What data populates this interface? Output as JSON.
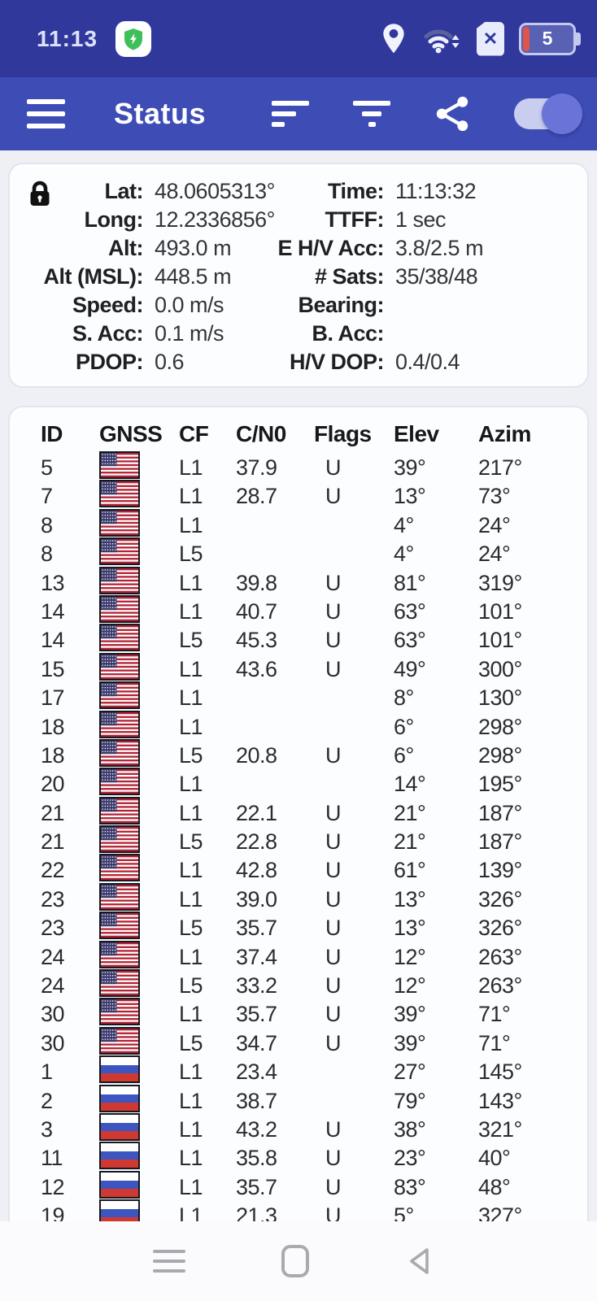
{
  "colors": {
    "statusbar_bg": "#30399b",
    "appbar_bg": "#3e4cb5",
    "page_bg": "#eef0f6",
    "card_bg": "#fcfdff",
    "card_border": "#e3e5ec",
    "text": "#2a2c30",
    "toggle_track": "#c9cdf0",
    "toggle_knob": "#6974d8",
    "battery_low_red": "#e0544a",
    "shield_green": "#3fbf57",
    "flag_us_blue": "#3c3b6e",
    "flag_us_red": "#b22234",
    "flag_ru_blue": "#3c55c0",
    "flag_ru_red": "#cf3931",
    "nav_icon_gray": "#a9aab0"
  },
  "status_bar": {
    "time": "11:13",
    "battery_level": "5",
    "icons": [
      "shield-icon",
      "location-pin-icon",
      "wifi-icon",
      "sim-no-signal-icon",
      "battery-icon"
    ]
  },
  "app_bar": {
    "title": "Status",
    "icons": [
      "menu-icon",
      "sort-icon",
      "filter-icon",
      "share-icon",
      "gnss-toggle"
    ],
    "toggle_on": true
  },
  "location_panel": {
    "lock_icon": "lock-icon",
    "rows": [
      {
        "left_label": "Lat:",
        "left_value": "48.0605313°",
        "right_label": "Time:",
        "right_value": "11:13:32"
      },
      {
        "left_label": "Long:",
        "left_value": "12.2336856°",
        "right_label": "TTFF:",
        "right_value": "1 sec"
      },
      {
        "left_label": "Alt:",
        "left_value": "493.0 m",
        "right_label": "E H/V Acc:",
        "right_value": "3.8/2.5 m"
      },
      {
        "left_label": "Alt (MSL):",
        "left_value": "448.5 m",
        "right_label": "# Sats:",
        "right_value": "35/38/48"
      },
      {
        "left_label": "Speed:",
        "left_value": "0.0 m/s",
        "right_label": "Bearing:",
        "right_value": ""
      },
      {
        "left_label": "S. Acc:",
        "left_value": "0.1 m/s",
        "right_label": "B. Acc:",
        "right_value": ""
      },
      {
        "left_label": "PDOP:",
        "left_value": "0.6",
        "right_label": "H/V DOP:",
        "right_value": "0.4/0.4"
      }
    ]
  },
  "sat_table": {
    "headers": [
      "ID",
      "GNSS",
      "CF",
      "C/N0",
      "Flags",
      "Elev",
      "Azim"
    ],
    "rows": [
      {
        "id": "5",
        "gnss": "us",
        "cf": "L1",
        "cn0": "37.9",
        "flags": "U",
        "elev": "39°",
        "azim": "217°"
      },
      {
        "id": "7",
        "gnss": "us",
        "cf": "L1",
        "cn0": "28.7",
        "flags": "U",
        "elev": "13°",
        "azim": "73°"
      },
      {
        "id": "8",
        "gnss": "us",
        "cf": "L1",
        "cn0": "",
        "flags": "",
        "elev": "4°",
        "azim": "24°"
      },
      {
        "id": "8",
        "gnss": "us",
        "cf": "L5",
        "cn0": "",
        "flags": "",
        "elev": "4°",
        "azim": "24°"
      },
      {
        "id": "13",
        "gnss": "us",
        "cf": "L1",
        "cn0": "39.8",
        "flags": "U",
        "elev": "81°",
        "azim": "319°"
      },
      {
        "id": "14",
        "gnss": "us",
        "cf": "L1",
        "cn0": "40.7",
        "flags": "U",
        "elev": "63°",
        "azim": "101°"
      },
      {
        "id": "14",
        "gnss": "us",
        "cf": "L5",
        "cn0": "45.3",
        "flags": "U",
        "elev": "63°",
        "azim": "101°"
      },
      {
        "id": "15",
        "gnss": "us",
        "cf": "L1",
        "cn0": "43.6",
        "flags": "U",
        "elev": "49°",
        "azim": "300°"
      },
      {
        "id": "17",
        "gnss": "us",
        "cf": "L1",
        "cn0": "",
        "flags": "",
        "elev": "8°",
        "azim": "130°"
      },
      {
        "id": "18",
        "gnss": "us",
        "cf": "L1",
        "cn0": "",
        "flags": "",
        "elev": "6°",
        "azim": "298°"
      },
      {
        "id": "18",
        "gnss": "us",
        "cf": "L5",
        "cn0": "20.8",
        "flags": "U",
        "elev": "6°",
        "azim": "298°"
      },
      {
        "id": "20",
        "gnss": "us",
        "cf": "L1",
        "cn0": "",
        "flags": "",
        "elev": "14°",
        "azim": "195°"
      },
      {
        "id": "21",
        "gnss": "us",
        "cf": "L1",
        "cn0": "22.1",
        "flags": "U",
        "elev": "21°",
        "azim": "187°"
      },
      {
        "id": "21",
        "gnss": "us",
        "cf": "L5",
        "cn0": "22.8",
        "flags": "U",
        "elev": "21°",
        "azim": "187°"
      },
      {
        "id": "22",
        "gnss": "us",
        "cf": "L1",
        "cn0": "42.8",
        "flags": "U",
        "elev": "61°",
        "azim": "139°"
      },
      {
        "id": "23",
        "gnss": "us",
        "cf": "L1",
        "cn0": "39.0",
        "flags": "U",
        "elev": "13°",
        "azim": "326°"
      },
      {
        "id": "23",
        "gnss": "us",
        "cf": "L5",
        "cn0": "35.7",
        "flags": "U",
        "elev": "13°",
        "azim": "326°"
      },
      {
        "id": "24",
        "gnss": "us",
        "cf": "L1",
        "cn0": "37.4",
        "flags": "U",
        "elev": "12°",
        "azim": "263°"
      },
      {
        "id": "24",
        "gnss": "us",
        "cf": "L5",
        "cn0": "33.2",
        "flags": "U",
        "elev": "12°",
        "azim": "263°"
      },
      {
        "id": "30",
        "gnss": "us",
        "cf": "L1",
        "cn0": "35.7",
        "flags": "U",
        "elev": "39°",
        "azim": "71°"
      },
      {
        "id": "30",
        "gnss": "us",
        "cf": "L5",
        "cn0": "34.7",
        "flags": "U",
        "elev": "39°",
        "azim": "71°"
      },
      {
        "id": "1",
        "gnss": "ru",
        "cf": "L1",
        "cn0": "23.4",
        "flags": "",
        "elev": "27°",
        "azim": "145°"
      },
      {
        "id": "2",
        "gnss": "ru",
        "cf": "L1",
        "cn0": "38.7",
        "flags": "",
        "elev": "79°",
        "azim": "143°"
      },
      {
        "id": "3",
        "gnss": "ru",
        "cf": "L1",
        "cn0": "43.2",
        "flags": "U",
        "elev": "38°",
        "azim": "321°"
      },
      {
        "id": "11",
        "gnss": "ru",
        "cf": "L1",
        "cn0": "35.8",
        "flags": "U",
        "elev": "23°",
        "azim": "40°"
      },
      {
        "id": "12",
        "gnss": "ru",
        "cf": "L1",
        "cn0": "35.7",
        "flags": "U",
        "elev": "83°",
        "azim": "48°"
      },
      {
        "id": "19",
        "gnss": "ru",
        "cf": "L1",
        "cn0": "21.3",
        "flags": "U",
        "elev": "5°",
        "azim": "327°"
      }
    ]
  },
  "nav_bar": {
    "icons": [
      "recent-apps-icon",
      "home-icon",
      "back-icon"
    ]
  }
}
